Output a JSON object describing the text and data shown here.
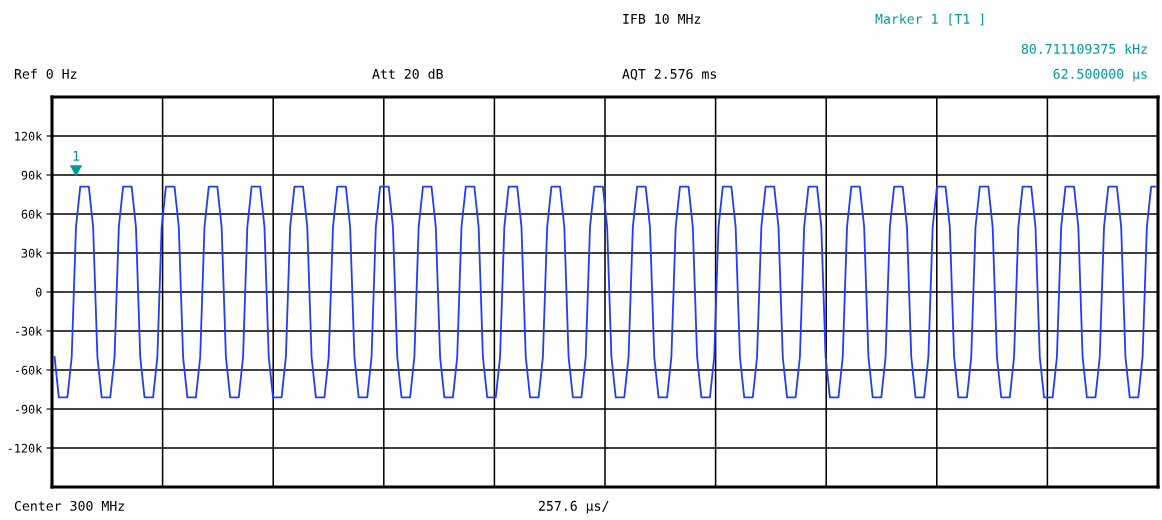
{
  "chart_data": {
    "type": "line",
    "categories": [
      null,
      null,
      null,
      null,
      null,
      null,
      null,
      null,
      null,
      null,
      null,
      null,
      null,
      null,
      null,
      null,
      null,
      null,
      null,
      null,
      null,
      null,
      null,
      null,
      null,
      null,
      null,
      null,
      null,
      null,
      null,
      null,
      null,
      null,
      null,
      null,
      null,
      null,
      null,
      null,
      null,
      null,
      null,
      null,
      null,
      null,
      null,
      null,
      null,
      null,
      null,
      null,
      null,
      null,
      null,
      null,
      null,
      null,
      null,
      null,
      null,
      null,
      null,
      null,
      null,
      null,
      null,
      null,
      null,
      null,
      null,
      null,
      null,
      null,
      null,
      null,
      null,
      null,
      null,
      null,
      null,
      null,
      null,
      null,
      null,
      null,
      null,
      null,
      null,
      null,
      null,
      null,
      null,
      null,
      null,
      null,
      null,
      null,
      null,
      null,
      null,
      null,
      null,
      null,
      null,
      null,
      null,
      null,
      null,
      null,
      null,
      null,
      null,
      null,
      null,
      null,
      null,
      null,
      null,
      null,
      null,
      null,
      null,
      null,
      null,
      null,
      null,
      null,
      null,
      null,
      null,
      null,
      null,
      null,
      null,
      null,
      null,
      null,
      null,
      null,
      null,
      null,
      null,
      null,
      null,
      null,
      null,
      null,
      null,
      null,
      null,
      null,
      null,
      null,
      null,
      null,
      null,
      null,
      null,
      null,
      null,
      null,
      null,
      null,
      null,
      null,
      null,
      null,
      null,
      null,
      null,
      null,
      null,
      null,
      null,
      null,
      null,
      null,
      null,
      null,
      null,
      null,
      null,
      null,
      null,
      null,
      null,
      null,
      null,
      null,
      null,
      null,
      null,
      null,
      null,
      null,
      null,
      null,
      null,
      null,
      null,
      null,
      null,
      null,
      null,
      null,
      null,
      null,
      null,
      null,
      null,
      null,
      null,
      null,
      null,
      null,
      null,
      null,
      null,
      null,
      null,
      null,
      null,
      null,
      null,
      null,
      null,
      null,
      null,
      null,
      null,
      null,
      null,
      null,
      null,
      null,
      null,
      null,
      null,
      null,
      null,
      null,
      null,
      null,
      null,
      null,
      null,
      null,
      null,
      null,
      null,
      null,
      null,
      null,
      null,
      null,
      null,
      null
    ],
    "series": [
      {
        "color": "#1f3cff",
        "values": [
          -50000,
          -81000,
          -81000,
          -81000,
          -50000,
          50000,
          81000,
          81000,
          81000,
          50000,
          -50000,
          -81000,
          -81000,
          -81000,
          -50000,
          50000,
          81000,
          81000,
          81000,
          50000,
          -50000,
          -81000,
          -81000,
          -81000,
          -50000,
          50000,
          81000,
          81000,
          81000,
          50000,
          -50000,
          -81000,
          -81000,
          -81000,
          -50000,
          50000,
          81000,
          81000,
          81000,
          50000,
          -50000,
          -81000,
          -81000,
          -81000,
          -50000,
          50000,
          81000,
          81000,
          81000,
          50000,
          -50000,
          -81000,
          -81000,
          -81000,
          -50000,
          50000,
          81000,
          81000,
          81000,
          50000,
          -50000,
          -81000,
          -81000,
          -81000,
          -50000,
          50000,
          81000,
          81000,
          81000,
          50000,
          -50000,
          -81000,
          -81000,
          -81000,
          -50000,
          50000,
          81000,
          81000,
          81000,
          50000,
          -50000,
          -81000,
          -81000,
          -81000,
          -50000,
          50000,
          81000,
          81000,
          81000,
          50000,
          -50000,
          -81000,
          -81000,
          -81000,
          -50000,
          50000,
          81000,
          81000,
          81000,
          50000,
          -50000,
          -81000,
          -81000,
          -81000,
          -50000,
          50000,
          81000,
          81000,
          81000,
          50000,
          -50000,
          -81000,
          -81000,
          -81000,
          -50000,
          50000,
          81000,
          81000,
          81000,
          50000,
          -50000,
          -81000,
          -81000,
          -81000,
          -50000,
          50000,
          81000,
          81000,
          81000,
          50000,
          -50000,
          -81000,
          -81000,
          -81000,
          -50000,
          50000,
          81000,
          81000,
          81000,
          50000,
          -50000,
          -81000,
          -81000,
          -81000,
          -50000,
          50000,
          81000,
          81000,
          81000,
          50000,
          -50000,
          -81000,
          -81000,
          -81000,
          -50000,
          50000,
          81000,
          81000,
          81000,
          50000,
          -50000,
          -81000,
          -81000,
          -81000,
          -50000,
          50000,
          81000,
          81000,
          81000,
          50000,
          -50000,
          -81000,
          -81000,
          -81000,
          -50000,
          50000,
          81000,
          81000,
          81000,
          50000,
          -50000,
          -81000,
          -81000,
          -81000,
          -50000,
          50000,
          81000,
          81000,
          81000,
          50000,
          -50000,
          -81000,
          -81000,
          -81000,
          -50000,
          50000,
          81000,
          81000,
          81000,
          50000,
          -50000,
          -81000,
          -81000,
          -81000,
          -50000,
          50000,
          81000,
          81000,
          81000,
          50000,
          -50000,
          -81000,
          -81000,
          -81000,
          -50000,
          50000,
          81000,
          81000,
          81000,
          50000,
          -50000,
          -81000,
          -81000,
          -81000,
          -50000,
          50000,
          81000,
          81000,
          81000,
          50000,
          -50000,
          -81000,
          -81000,
          -81000,
          -50000,
          50000,
          81000,
          81000,
          81000,
          50000,
          -50000,
          -81000,
          -81000,
          -81000,
          -50000,
          50000,
          81000,
          81000,
          81000,
          50000,
          -50000,
          -81000,
          -81000,
          -81000,
          -50000,
          50000,
          81000,
          81000
        ]
      }
    ],
    "ylim": [
      -150000,
      150000
    ],
    "yticks": [
      {
        "value": 120000,
        "label": "120k"
      },
      {
        "value": 90000,
        "label": "90k"
      },
      {
        "value": 60000,
        "label": "60k"
      },
      {
        "value": 30000,
        "label": "30k"
      },
      {
        "value": 0,
        "label": "0"
      },
      {
        "value": -30000,
        "label": "-30k"
      },
      {
        "value": -60000,
        "label": "-60k"
      },
      {
        "value": -90000,
        "label": "-90k"
      },
      {
        "value": -120000,
        "label": "-120k"
      }
    ],
    "grid": true,
    "tick_labels": "y",
    "annotations": [
      "IFB 10 MHz",
      "Marker 1 [T1 ]",
      "80.711109375 kHz",
      "Ref 0 Hz",
      "Att 20 dB",
      "AQT 2.576 ms",
      "62.500000 µs",
      "Center 300 MHz",
      "257.6 µs/",
      "1"
    ]
  }
}
